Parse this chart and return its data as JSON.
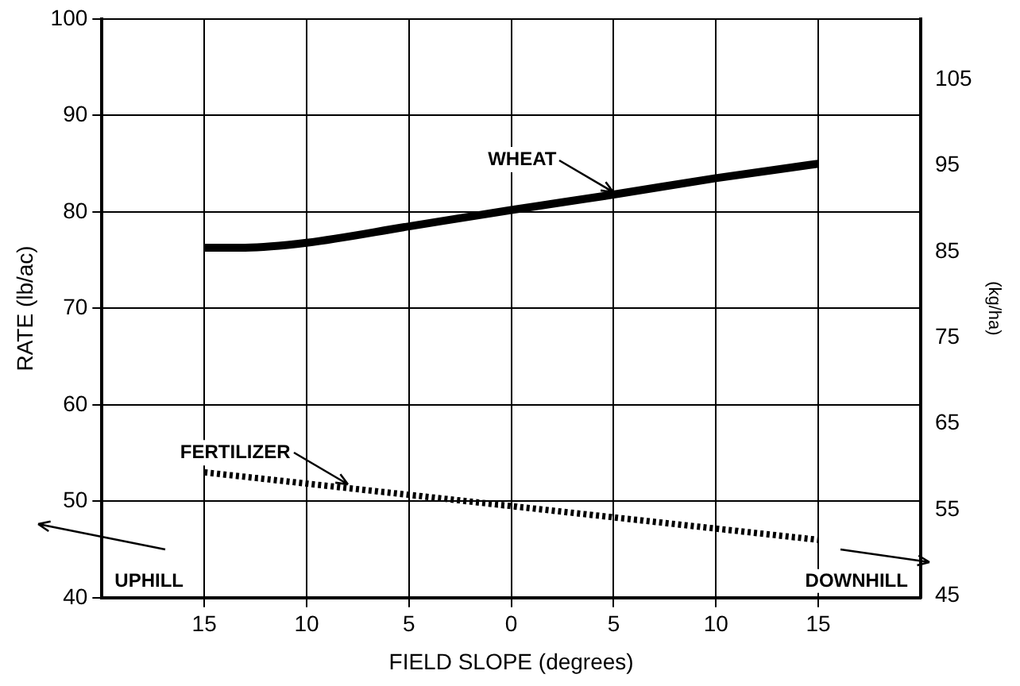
{
  "chart_data": {
    "type": "line",
    "xlabel": "FIELD SLOPE (degrees)",
    "ylabel": "RATE (lb/ac)",
    "y2label": "(kg/ha)",
    "xlim": [
      -20,
      20
    ],
    "xticks": [
      {
        "value": -15,
        "label": "15"
      },
      {
        "value": -10,
        "label": "10"
      },
      {
        "value": -5,
        "label": "5"
      },
      {
        "value": 0,
        "label": "0"
      },
      {
        "value": 5,
        "label": "5"
      },
      {
        "value": 10,
        "label": "10"
      },
      {
        "value": 15,
        "label": "15"
      }
    ],
    "ylim": [
      40,
      100
    ],
    "yticks": [
      40,
      50,
      60,
      70,
      80,
      90,
      100
    ],
    "y2lim": [
      44.8,
      112
    ],
    "y2ticks": [
      45,
      55,
      65,
      75,
      85,
      95,
      105
    ],
    "grid": true,
    "legend": false,
    "series": [
      {
        "color": "#000000",
        "line_style": "solid",
        "x": [
          -15,
          -13,
          -10,
          -5,
          0,
          5,
          10,
          15
        ],
        "values": [
          76.3,
          76.3,
          76.8,
          78.5,
          80.2,
          81.8,
          83.5,
          85
        ]
      },
      {
        "color": "#000000",
        "line_style": "dotted",
        "x": [
          -15,
          15
        ],
        "values": [
          53,
          46
        ]
      }
    ],
    "annotations": [
      {
        "text": "WHEAT",
        "x": 5,
        "y": 81.8
      },
      {
        "text": "FERTILIZER",
        "x": -8,
        "y": 51.4
      },
      "UPHILL",
      "DOWNHILL"
    ]
  }
}
